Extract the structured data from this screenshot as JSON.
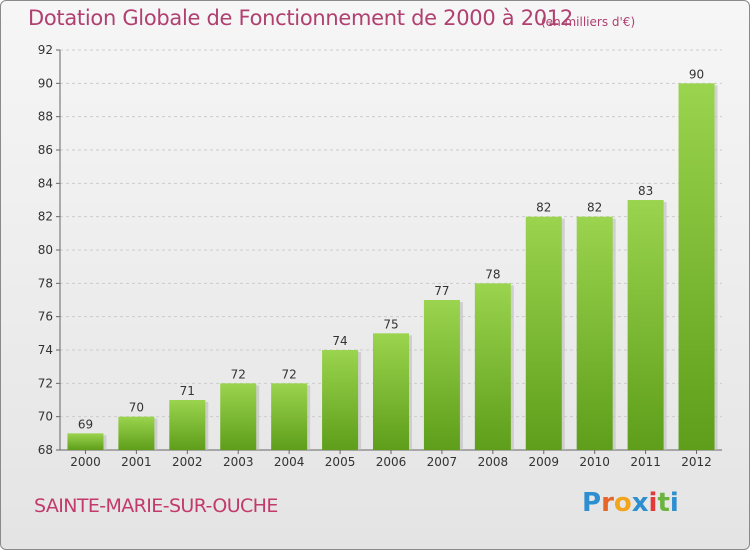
{
  "header": {
    "title": "Dotation Globale de Fonctionnement de 2000 à 2012",
    "subtitle": "(en milliers d'€)"
  },
  "footer": {
    "commune": "SAINTE-MARIE-SUR-OUCHE",
    "logo_letters": [
      "P",
      "r",
      "o",
      "x",
      "i",
      "t",
      "i"
    ],
    "logo_colors": [
      "#2e8fd0",
      "#e8652a",
      "#f2a51a",
      "#2e8fd0",
      "#e23a3a",
      "#6cb33f",
      "#2e8fd0"
    ]
  },
  "colors": {
    "bar_light": "#9bd44e",
    "bar_dark": "#5e9e1a",
    "grid": "#cccccc",
    "axis": "#666666"
  },
  "chart_data": {
    "type": "bar",
    "title": "Dotation Globale de Fonctionnement de 2000 à 2012",
    "subtitle": "(en milliers d'€)",
    "xlabel": "",
    "ylabel": "",
    "categories": [
      "2000",
      "2001",
      "2002",
      "2003",
      "2004",
      "2005",
      "2006",
      "2007",
      "2008",
      "2009",
      "2010",
      "2011",
      "2012"
    ],
    "values": [
      69,
      70,
      71,
      72,
      72,
      74,
      75,
      77,
      78,
      82,
      82,
      83,
      90
    ],
    "ylim": [
      68,
      92
    ],
    "yticks": [
      68,
      70,
      72,
      74,
      76,
      78,
      80,
      82,
      84,
      86,
      88,
      90,
      92
    ],
    "grid": true
  }
}
